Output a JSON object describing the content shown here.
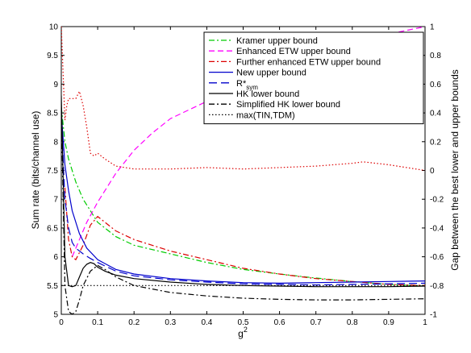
{
  "chart_data": {
    "type": "line",
    "xlabel": "g",
    "xlabel_sup": "2",
    "ylabel": "Sum rate (bits/channel use)",
    "y2label": "Gap between the best lower and upper bounds",
    "xlim": [
      0,
      1
    ],
    "ylim": [
      5,
      10
    ],
    "y2lim": [
      -1,
      1
    ],
    "x_ticks": [
      "0",
      "0.1",
      "0.2",
      "0.3",
      "0.4",
      "0.5",
      "0.6",
      "0.7",
      "0.8",
      "0.9",
      "1"
    ],
    "y_ticks": [
      "5",
      "5.5",
      "6",
      "6.5",
      "7",
      "7.5",
      "8",
      "8.5",
      "9",
      "9.5",
      "10"
    ],
    "y2_ticks": [
      "-1",
      "-0.8",
      "-0.6",
      "-0.4",
      "-0.2",
      "0",
      "0.2",
      "0.4",
      "0.6",
      "0.8",
      "1"
    ],
    "legend_position": "top-right",
    "series": [
      {
        "name": "Kramer upper bound",
        "color": "#00cc00",
        "dash": "dashdot",
        "axis": "left",
        "x": [
          0.0,
          0.01,
          0.02,
          0.04,
          0.06,
          0.08,
          0.1,
          0.15,
          0.2,
          0.3,
          0.4,
          0.5,
          0.6,
          0.7,
          0.8,
          0.9,
          1.0
        ],
        "y": [
          8.6,
          8.0,
          7.7,
          7.3,
          7.0,
          6.8,
          6.6,
          6.35,
          6.2,
          6.05,
          5.9,
          5.78,
          5.7,
          5.63,
          5.57,
          5.52,
          5.49
        ]
      },
      {
        "name": "Enhanced ETW upper bound",
        "color": "#ff00ff",
        "dash": "dash",
        "axis": "left",
        "x": [
          0.03,
          0.05,
          0.07,
          0.1,
          0.15,
          0.2,
          0.25,
          0.3,
          0.35,
          0.4,
          0.45,
          0.5,
          0.6,
          0.7,
          0.8,
          0.9,
          1.0
        ],
        "y": [
          6.0,
          6.3,
          6.6,
          6.95,
          7.45,
          7.85,
          8.15,
          8.4,
          8.55,
          8.7,
          8.85,
          9.0,
          9.25,
          9.5,
          9.7,
          9.87,
          10.0
        ]
      },
      {
        "name": "Further enhanced ETW upper bound",
        "color": "#dd0000",
        "dash": "dashdot",
        "axis": "left",
        "x": [
          0.01,
          0.02,
          0.03,
          0.04,
          0.06,
          0.08,
          0.1,
          0.15,
          0.2,
          0.3,
          0.4,
          0.5,
          0.6,
          0.7,
          0.8,
          0.9,
          1.0
        ],
        "y": [
          7.2,
          6.3,
          6.0,
          5.95,
          6.2,
          6.55,
          6.7,
          6.45,
          6.3,
          6.1,
          5.95,
          5.8,
          5.7,
          5.62,
          5.57,
          5.52,
          5.5
        ]
      },
      {
        "name": "New upper bound",
        "color": "#0000cc",
        "dash": "solid",
        "axis": "left",
        "x": [
          0.0,
          0.01,
          0.02,
          0.03,
          0.05,
          0.07,
          0.1,
          0.15,
          0.2,
          0.3,
          0.4,
          0.5,
          0.6,
          0.7,
          0.8,
          0.9,
          1.0
        ],
        "y": [
          8.5,
          7.6,
          7.15,
          6.8,
          6.4,
          6.15,
          5.95,
          5.78,
          5.7,
          5.62,
          5.58,
          5.55,
          5.54,
          5.55,
          5.56,
          5.57,
          5.58
        ]
      },
      {
        "name": "R*",
        "name_sub": "sym",
        "color": "#0000cc",
        "dash": "longdash",
        "axis": "left",
        "x": [
          0.0,
          0.01,
          0.02,
          0.03,
          0.04,
          0.06,
          0.08,
          0.1,
          0.15,
          0.2,
          0.3,
          0.4,
          0.5,
          0.6,
          0.7,
          0.8,
          0.9,
          1.0
        ],
        "y": [
          8.4,
          7.0,
          6.5,
          6.25,
          6.15,
          6.05,
          5.97,
          5.9,
          5.75,
          5.67,
          5.6,
          5.56,
          5.53,
          5.52,
          5.51,
          5.52,
          5.53,
          5.54
        ]
      },
      {
        "name": "HK lower bound",
        "color": "#000000",
        "dash": "solid",
        "axis": "left",
        "x": [
          0.0,
          0.01,
          0.02,
          0.03,
          0.04,
          0.05,
          0.06,
          0.07,
          0.08,
          0.09,
          0.1,
          0.12,
          0.15,
          0.2,
          0.3,
          0.4,
          0.5,
          0.6,
          0.7,
          0.8,
          0.9,
          1.0
        ],
        "y": [
          8.8,
          6.0,
          5.5,
          5.48,
          5.5,
          5.65,
          5.8,
          5.87,
          5.9,
          5.88,
          5.82,
          5.75,
          5.68,
          5.62,
          5.56,
          5.52,
          5.5,
          5.49,
          5.48,
          5.48,
          5.48,
          5.49
        ]
      },
      {
        "name": "Simplified HK lower bound",
        "color": "#000000",
        "dash": "dashdot",
        "axis": "left",
        "x": [
          0.0,
          0.01,
          0.02,
          0.03,
          0.04,
          0.05,
          0.06,
          0.08,
          0.1,
          0.12,
          0.15,
          0.2,
          0.3,
          0.4,
          0.5,
          0.6,
          0.7,
          0.8,
          0.9,
          1.0
        ],
        "y": [
          8.6,
          5.5,
          5.05,
          5.0,
          5.05,
          5.25,
          5.5,
          5.75,
          5.85,
          5.78,
          5.65,
          5.5,
          5.38,
          5.32,
          5.28,
          5.26,
          5.25,
          5.25,
          5.26,
          5.27
        ]
      },
      {
        "name": "max(TIN,TDM)",
        "color": "#000000",
        "dash": "dot",
        "axis": "left",
        "x": [
          0.0,
          0.05,
          0.1,
          0.2,
          0.3,
          0.4,
          0.5,
          0.6,
          0.7,
          0.8,
          0.9,
          1.0
        ],
        "y": [
          5.5,
          5.5,
          5.5,
          5.5,
          5.5,
          5.5,
          5.5,
          5.5,
          5.5,
          5.5,
          5.5,
          5.5
        ]
      },
      {
        "name": "gap",
        "color": "#dd0000",
        "dash": "dot",
        "axis": "right",
        "in_legend": false,
        "x": [
          0.0,
          0.01,
          0.015,
          0.02,
          0.03,
          0.04,
          0.05,
          0.06,
          0.07,
          0.08,
          0.09,
          0.1,
          0.12,
          0.15,
          0.2,
          0.3,
          0.4,
          0.5,
          0.6,
          0.7,
          0.8,
          0.83,
          0.9,
          1.0
        ],
        "y": [
          1.0,
          0.35,
          0.45,
          0.5,
          0.5,
          0.5,
          0.55,
          0.45,
          0.3,
          0.12,
          0.1,
          0.12,
          0.08,
          0.03,
          0.01,
          0.01,
          0.02,
          0.01,
          0.02,
          0.03,
          0.05,
          0.06,
          0.04,
          0.0
        ]
      }
    ]
  }
}
